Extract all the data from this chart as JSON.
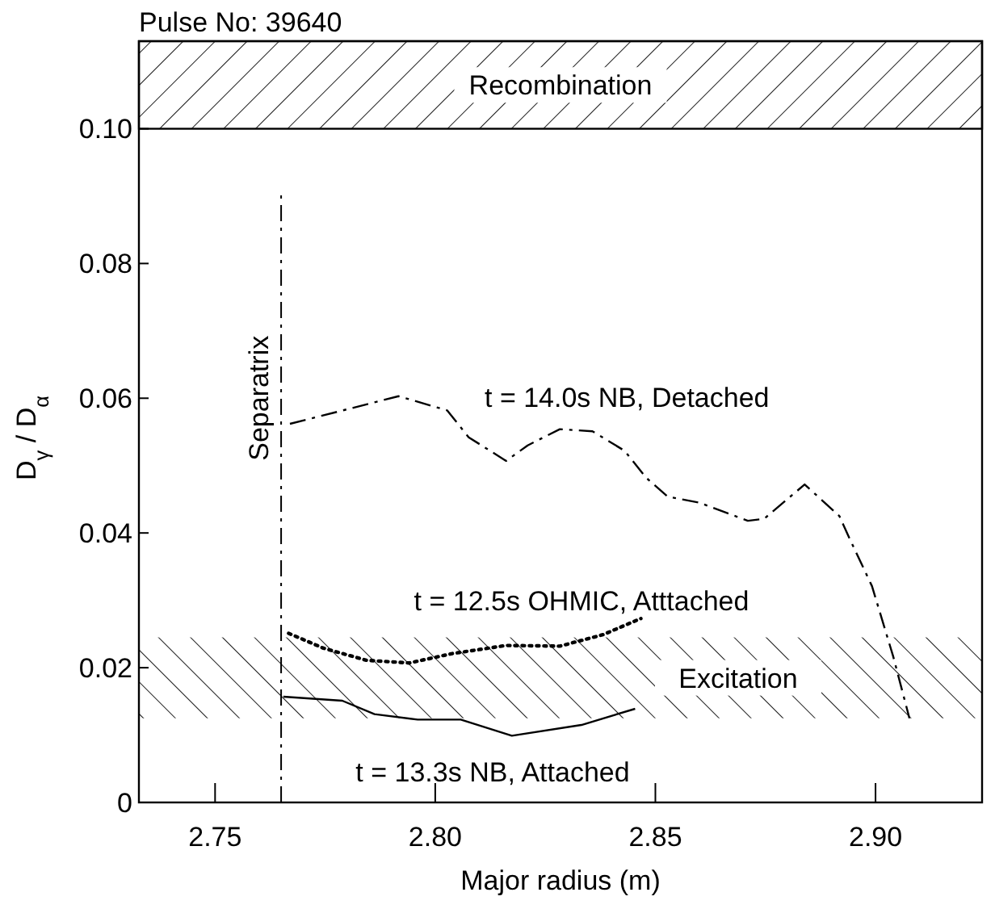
{
  "chart_data": {
    "type": "line",
    "title": "Pulse No: 39640",
    "xlabel": "Major radius (m)",
    "ylabel": "D$_{γ}$ / D$_{α}$",
    "xlim": [
      2.7327,
      2.9242
    ],
    "ylim": [
      0,
      0.113
    ],
    "xticks": [
      {
        "value": 2.75,
        "label": "2.75"
      },
      {
        "value": 2.8,
        "label": "2.80"
      },
      {
        "value": 2.85,
        "label": "2.85"
      },
      {
        "value": 2.9,
        "label": "2.90"
      }
    ],
    "yticks": [
      {
        "value": 0,
        "label": "0"
      },
      {
        "value": 0.02,
        "label": "0.02"
      },
      {
        "value": 0.04,
        "label": "0.04"
      },
      {
        "value": 0.06,
        "label": "0.06"
      },
      {
        "value": 0.08,
        "label": "0.08"
      },
      {
        "value": 0.1,
        "label": "0.10"
      }
    ],
    "series": [
      {
        "name": "t = 14.0s NB, Detached",
        "color": "#000000",
        "line_style": "dashdot",
        "x": [
          2.767,
          2.7917,
          2.8027,
          2.8076,
          2.8161,
          2.821,
          2.8283,
          2.8357,
          2.843,
          2.8479,
          2.8528,
          2.86,
          2.871,
          2.8747,
          2.8839,
          2.8918,
          2.8943,
          2.8992,
          2.904,
          2.9077
        ],
        "values": [
          0.0562,
          0.0603,
          0.0582,
          0.0542,
          0.0507,
          0.053,
          0.0554,
          0.0551,
          0.0522,
          0.0482,
          0.0454,
          0.0445,
          0.0418,
          0.0421,
          0.0472,
          0.0425,
          0.0389,
          0.0321,
          0.0217,
          0.0125
        ]
      },
      {
        "name": "t = 12.5s OHMIC, Atttached",
        "color": "#000000",
        "line_style": "dotted",
        "x": [
          2.7667,
          2.7746,
          2.7844,
          2.7941,
          2.8039,
          2.8161,
          2.8283,
          2.8381,
          2.8467
        ],
        "values": [
          0.0251,
          0.0229,
          0.0211,
          0.0207,
          0.0221,
          0.0233,
          0.0232,
          0.0249,
          0.0273
        ]
      },
      {
        "name": "t = 13.3s NB, Attached",
        "color": "#000000",
        "line_style": "solid",
        "x": [
          2.7655,
          2.7789,
          2.7862,
          2.796,
          2.8058,
          2.8174,
          2.8332,
          2.8454
        ],
        "values": [
          0.0157,
          0.0151,
          0.0131,
          0.0123,
          0.0123,
          0.0099,
          0.0115,
          0.0139
        ]
      }
    ],
    "ref_lines": [
      {
        "axis": "x",
        "value": 2.765,
        "label": "Separatrix",
        "color": "#000000",
        "line_style": "dashdot"
      }
    ],
    "bands": [
      {
        "axis": "y",
        "from": 0.1,
        "to": 0.113,
        "label": "Recombination",
        "color": "#000000"
      },
      {
        "axis": "y",
        "from": 0.0125,
        "to": 0.0245,
        "label": "Excitation",
        "color": "#000000"
      }
    ]
  }
}
